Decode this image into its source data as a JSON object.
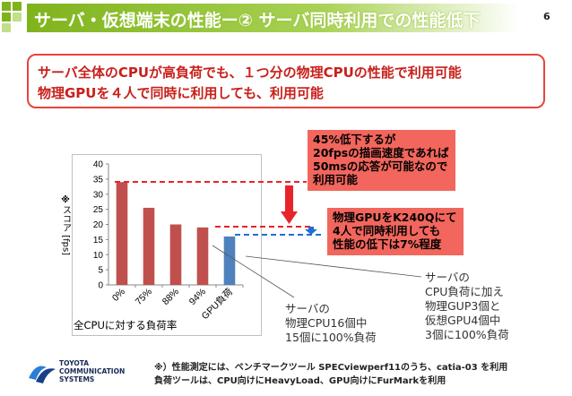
{
  "slide": {
    "title": "サーバ・仮想端末の性能ー② サーバ同時利用での性能低下",
    "page_number": "6"
  },
  "summary": {
    "line1": "サーバ全体のCPUが高負荷でも、１つ分の物理CPUの性能で利用可能",
    "line2": "物理GPUを４人で同時に利用しても、利用可能"
  },
  "callouts": {
    "top": [
      "45%低下するが",
      "20fpsの描画速度であれば",
      "50msの応答が可能なので",
      "利用可能"
    ],
    "middle": [
      "物理GPUをK240Qにて",
      "4人で同時利用しても",
      "性能の低下は7%程度"
    ]
  },
  "notes": {
    "cpu": [
      "サーバの",
      "物理CPU16個中",
      "15個に100%負荷"
    ],
    "gpu": [
      "サーバの",
      "CPU負荷に加え",
      "物理GUP3個と",
      "仮想GPU4個中",
      "3個に100%負荷"
    ]
  },
  "chart_data": {
    "type": "bar",
    "categories": [
      "0%",
      "75%",
      "88%",
      "94%",
      "GPU負荷"
    ],
    "values": [
      34,
      25.5,
      20,
      19,
      16
    ],
    "colors": [
      "#c0504d",
      "#c0504d",
      "#c0504d",
      "#c0504d",
      "#4f81bd"
    ],
    "ylabel": "スコア [fps]",
    "ylabel_mark": "※",
    "xlabel": "全CPUに対する負荷率",
    "ylim": [
      0,
      40
    ],
    "yticks": [
      "0",
      "5",
      "10",
      "15",
      "20",
      "25",
      "30",
      "35",
      "40"
    ]
  },
  "footnote": {
    "line1": "※）性能測定には、ベンチマークツール SPECviewperf11のうち、catia-03 を利用",
    "line2": "負荷ツールは、CPU向けにHeavyLoad、GPU向けにFurMarkを利用"
  },
  "logo": {
    "lines": [
      "TOYOTA",
      "COMMUNICATION",
      "SYSTEMS"
    ]
  },
  "colors": {
    "accent_green": "#7fb31c",
    "accent_red": "#e8443a",
    "callout_fill": "#f2665d",
    "arrow_blue": "#1f6fd6"
  }
}
